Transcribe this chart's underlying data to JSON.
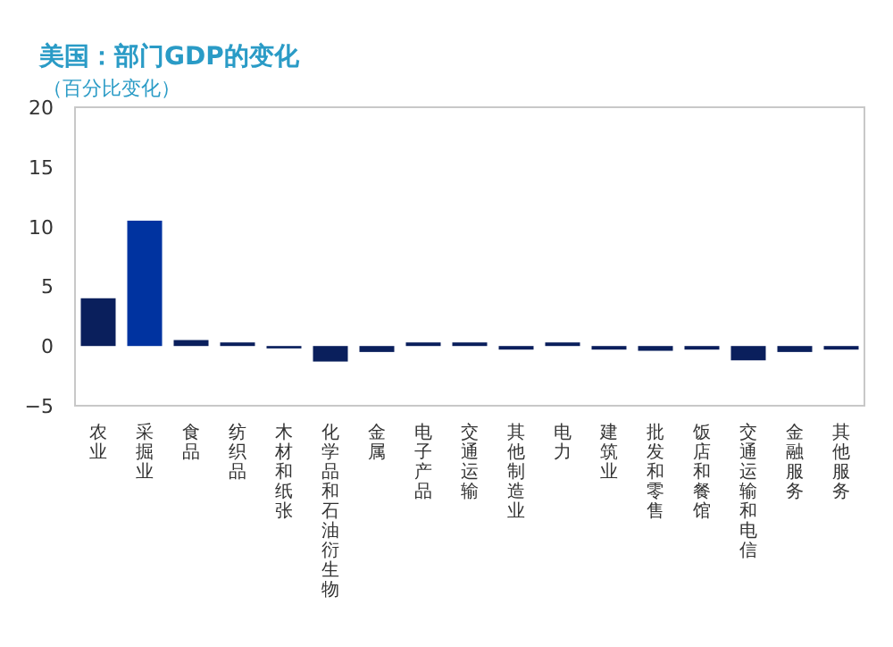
{
  "chart_data": {
    "type": "bar",
    "title": "美国：部门GDP的变化",
    "subtitle": "（百分比变化）",
    "categories": [
      "农业",
      "采掘业",
      "食品",
      "纺织品",
      "木材和纸张",
      "化学品和石油衍生物",
      "金属",
      "电子产品",
      "交通运输",
      "其他制造业",
      "电力",
      "建筑业",
      "批发和零售",
      "饭店和餐馆",
      "交通运输和电信",
      "金融服务",
      "其他服务"
    ],
    "values": [
      4,
      10.5,
      0.5,
      0.3,
      -0.2,
      -1.3,
      -0.5,
      0.3,
      0.3,
      -0.3,
      0.3,
      -0.3,
      -0.4,
      -0.3,
      -1.2,
      -0.5,
      -0.3
    ],
    "colors": [
      "#0a1f5c",
      "#0033a0",
      "#0a1f5c",
      "#0a1f5c",
      "#0a1f5c",
      "#0a1f5c",
      "#0a1f5c",
      "#0a1f5c",
      "#0a1f5c",
      "#0a1f5c",
      "#0a1f5c",
      "#0a1f5c",
      "#0a1f5c",
      "#0a1f5c",
      "#0a1f5c",
      "#0a1f5c",
      "#0a1f5c"
    ],
    "ylim": [
      -5,
      20
    ],
    "yticks": [
      20,
      15,
      10,
      5,
      0,
      -5
    ],
    "grid": false
  }
}
